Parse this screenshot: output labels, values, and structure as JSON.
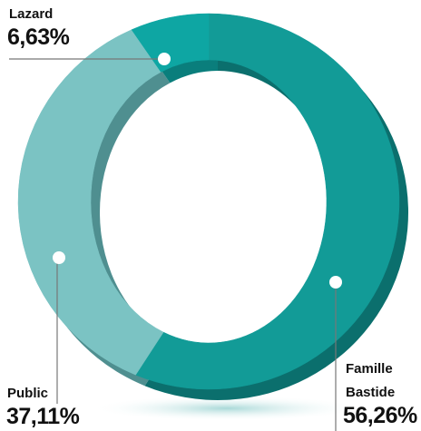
{
  "chart_data": {
    "type": "donut",
    "categories": [
      "Famille Bastide",
      "Public",
      "Lazard"
    ],
    "values": [
      56.26,
      37.11,
      6.63
    ],
    "value_labels": [
      "56,26%",
      "37,11%",
      "6,63%"
    ],
    "colors": [
      "#129b97",
      "#7bc3c3",
      "#0ea6a3"
    ],
    "side_colors": [
      "#0b6f6d",
      "#4f8f90",
      "#0a7e7c"
    ]
  }
}
